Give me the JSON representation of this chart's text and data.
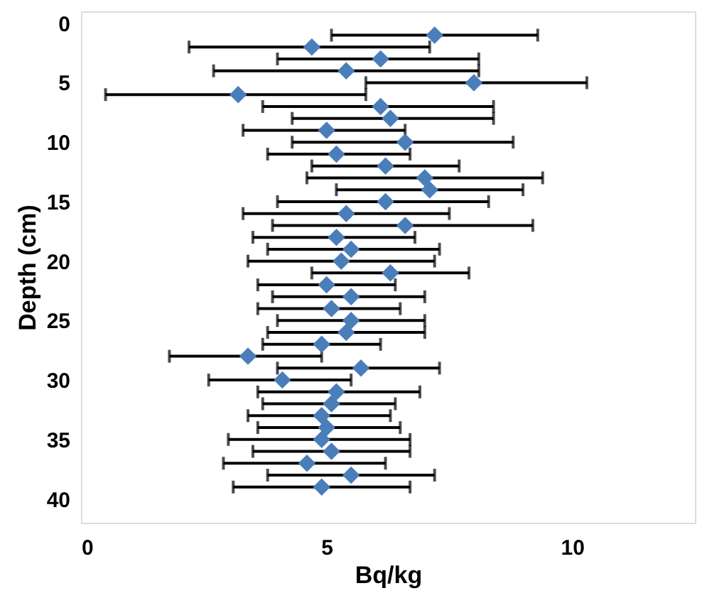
{
  "chart_data": {
    "type": "scatter",
    "xlabel": "Bq/kg",
    "ylabel": "Depth (cm)",
    "x": [
      7.2,
      4.7,
      6.1,
      5.4,
      8.0,
      3.2,
      6.1,
      6.3,
      5.0,
      6.6,
      5.2,
      6.2,
      7.0,
      7.1,
      6.2,
      5.4,
      6.6,
      5.2,
      5.5,
      5.3,
      6.3,
      5.0,
      5.5,
      5.1,
      5.5,
      5.4,
      4.9,
      3.4,
      5.7,
      4.1,
      5.2,
      5.1,
      4.9,
      5.0,
      4.9,
      5.1,
      4.6,
      5.5,
      4.9
    ],
    "values": [
      1,
      2,
      3,
      4,
      5,
      6,
      7,
      8,
      9,
      10,
      11,
      12,
      13,
      14,
      15,
      16,
      17,
      18,
      19,
      20,
      21,
      22,
      23,
      24,
      25,
      26,
      27,
      28,
      29,
      30,
      31,
      32,
      33,
      34,
      35,
      36,
      37,
      38,
      39
    ],
    "xerrors": [
      [
        5.1,
        9.3
      ],
      [
        2.2,
        7.1
      ],
      [
        4.0,
        8.1
      ],
      [
        2.7,
        8.1
      ],
      [
        5.8,
        10.3
      ],
      [
        0.5,
        5.8
      ],
      [
        3.7,
        8.4
      ],
      [
        4.3,
        8.4
      ],
      [
        3.3,
        6.6
      ],
      [
        4.3,
        8.8
      ],
      [
        3.8,
        6.7
      ],
      [
        4.7,
        7.7
      ],
      [
        4.6,
        9.4
      ],
      [
        5.2,
        9.0
      ],
      [
        4.0,
        8.3
      ],
      [
        3.3,
        7.5
      ],
      [
        3.9,
        9.2
      ],
      [
        3.5,
        6.8
      ],
      [
        3.8,
        7.3
      ],
      [
        3.4,
        7.2
      ],
      [
        4.7,
        7.9
      ],
      [
        3.6,
        6.4
      ],
      [
        3.9,
        7.0
      ],
      [
        3.6,
        6.5
      ],
      [
        4.0,
        7.0
      ],
      [
        3.8,
        7.0
      ],
      [
        3.7,
        6.1
      ],
      [
        1.8,
        4.9
      ],
      [
        4.0,
        7.3
      ],
      [
        2.6,
        5.5
      ],
      [
        3.6,
        6.9
      ],
      [
        3.7,
        6.4
      ],
      [
        3.4,
        6.3
      ],
      [
        3.6,
        6.5
      ],
      [
        3.0,
        6.7
      ],
      [
        3.5,
        6.7
      ],
      [
        2.9,
        6.2
      ],
      [
        3.8,
        7.2
      ],
      [
        3.1,
        6.7
      ]
    ],
    "color": "#4a7ebb",
    "marker": "diamond",
    "xlim": [
      0,
      12.5
    ],
    "xticks": [
      0,
      5,
      10
    ],
    "ylim": [
      42,
      -1
    ],
    "yticks": [
      0,
      5,
      10,
      15,
      20,
      25,
      30,
      35,
      40
    ],
    "grid": false
  }
}
